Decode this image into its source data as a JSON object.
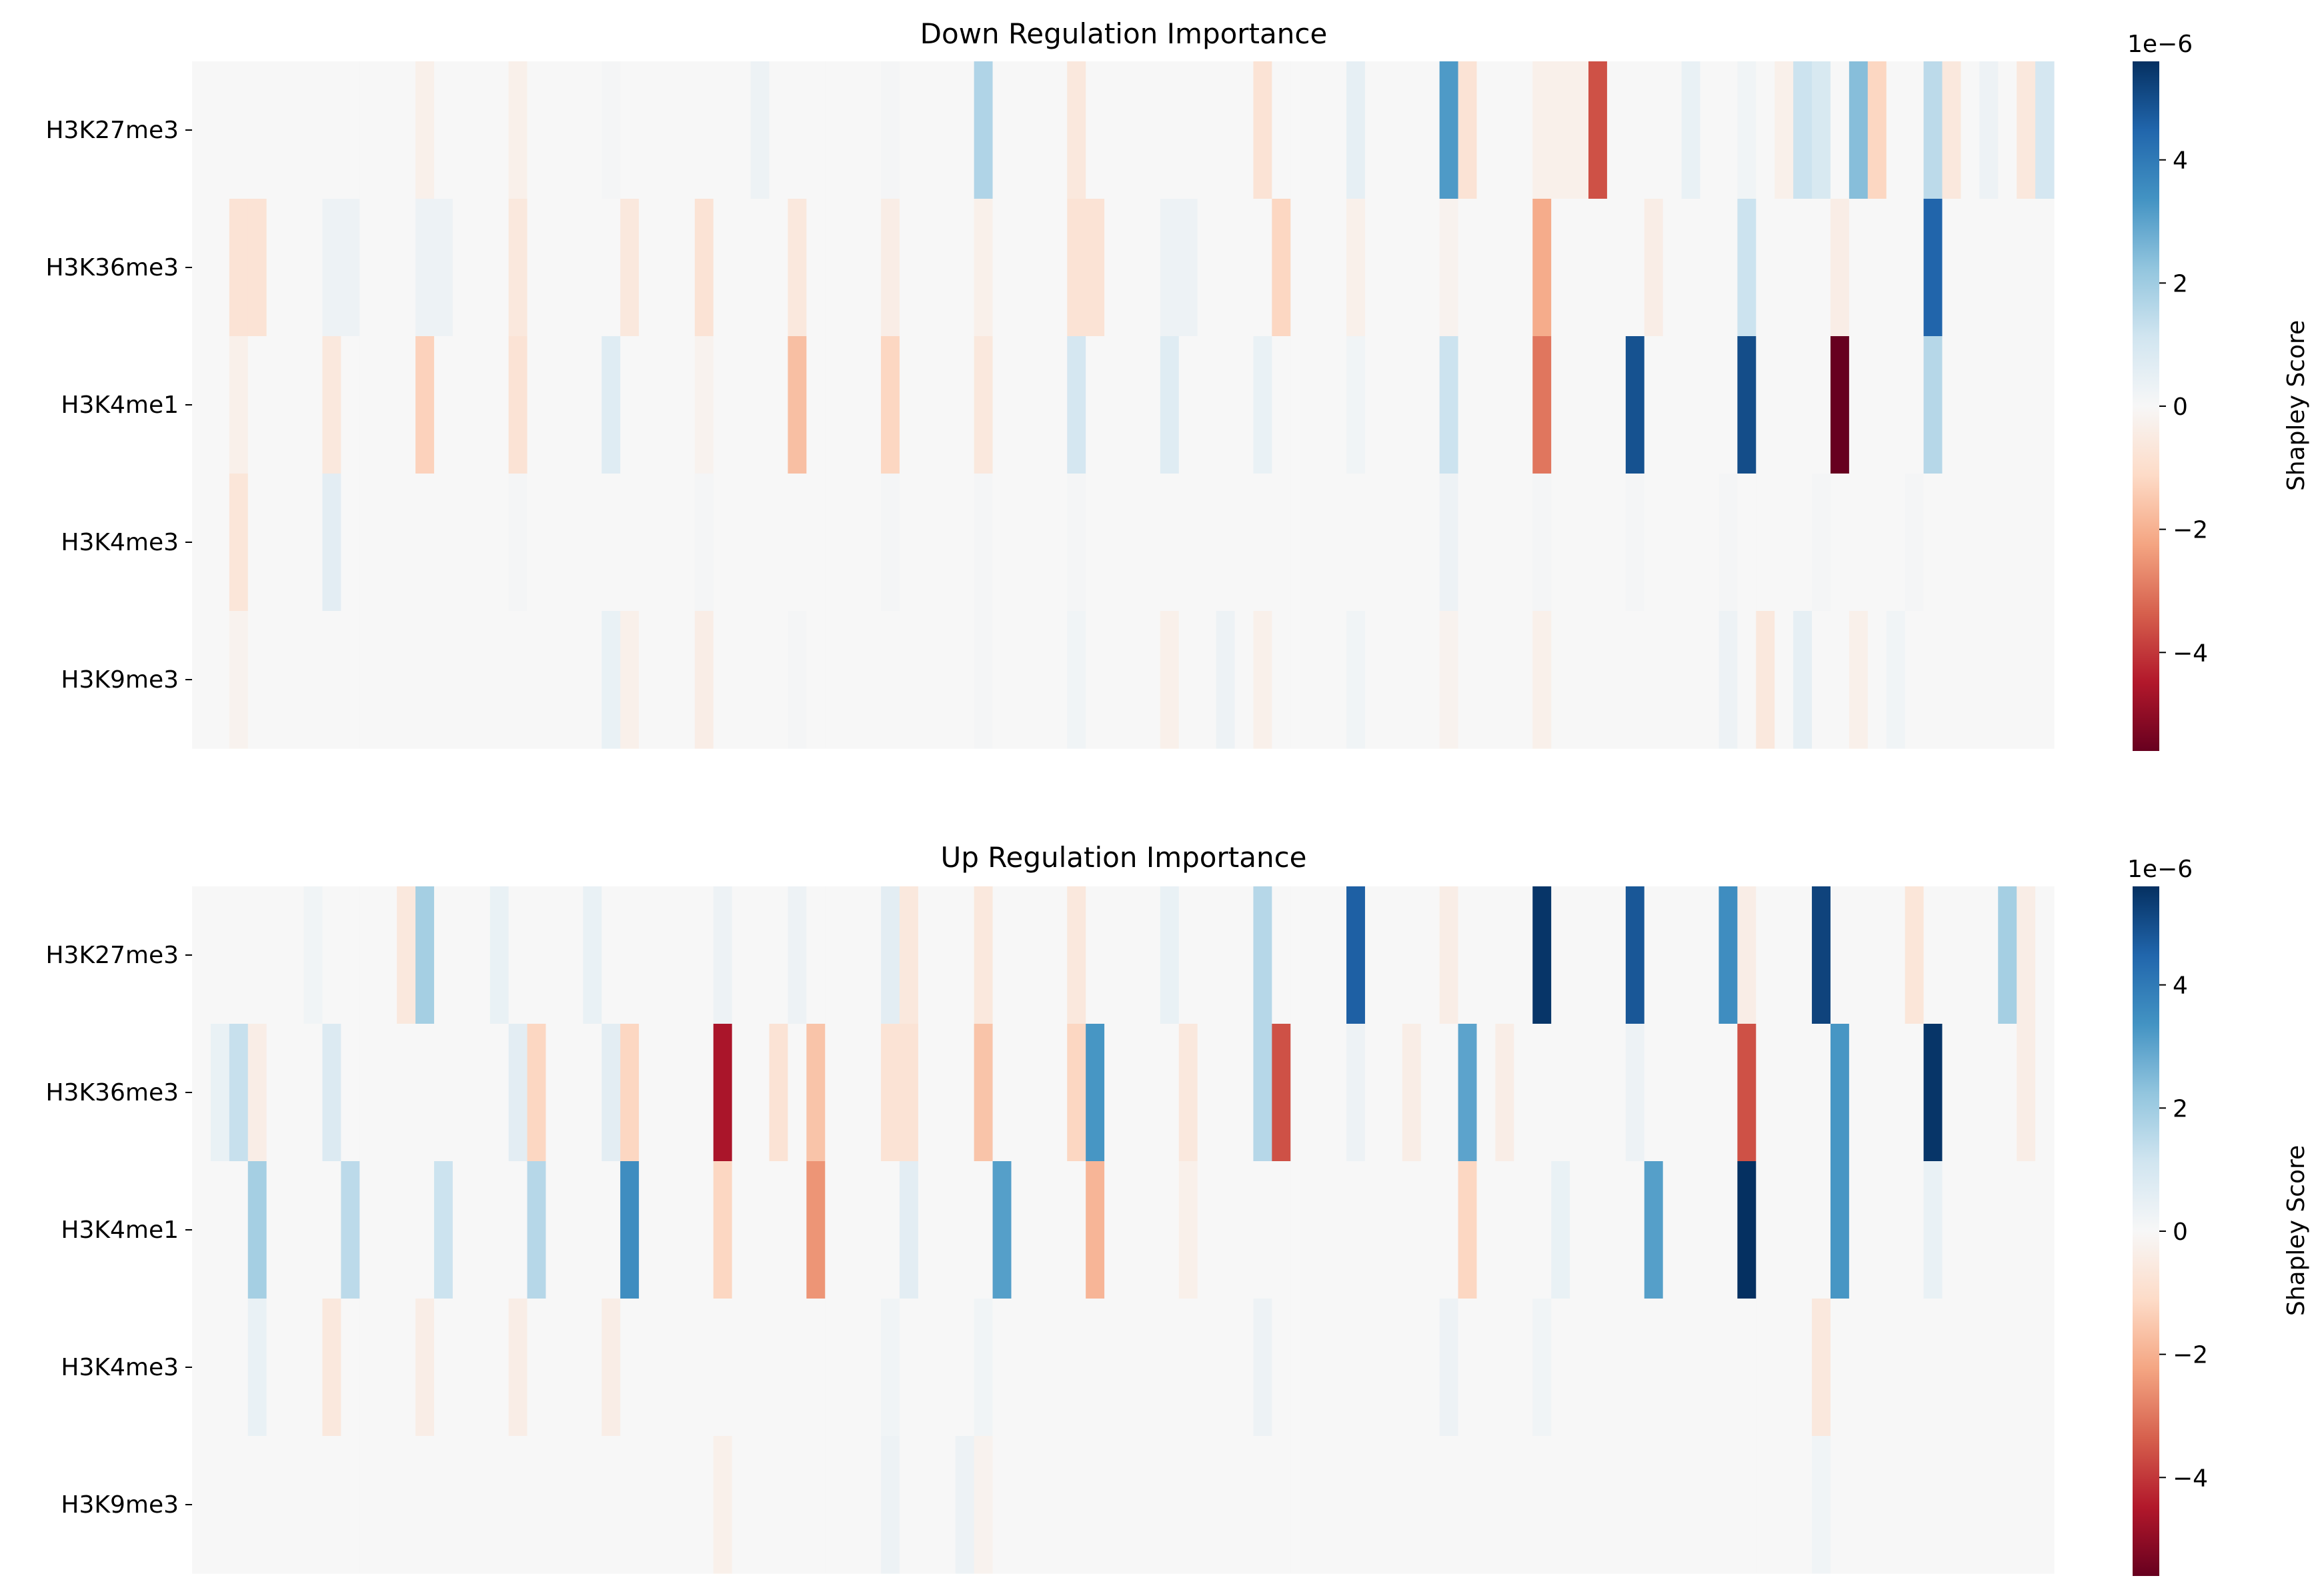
{
  "chart_data": [
    {
      "type": "heatmap",
      "title": "Down Regulation Importance",
      "rows": [
        "H3K27me3",
        "H3K36me3",
        "H3K4me1",
        "H3K4me3",
        "H3K9me3"
      ],
      "columns_count": 100,
      "colormap": "RdBu",
      "vmin": -5.6,
      "vmax": 5.6,
      "colorbar": {
        "label": "Shapley Score",
        "multiplier": "1e−6",
        "ticks": [
          "4",
          "2",
          "0",
          "−2",
          "−4"
        ],
        "tick_values": [
          4,
          2,
          0,
          -2,
          -4
        ]
      },
      "sparse_values": {
        "H3K27me3": [
          [
            12,
            -0.3
          ],
          [
            17,
            -0.3
          ],
          [
            22,
            0.1
          ],
          [
            30,
            0.3
          ],
          [
            37,
            0.1
          ],
          [
            42,
            1.7
          ],
          [
            47,
            -0.6
          ],
          [
            57,
            -0.8
          ],
          [
            62,
            0.5
          ],
          [
            67,
            3.2
          ],
          [
            68,
            -0.8
          ],
          [
            72,
            -0.3
          ],
          [
            73,
            -0.3
          ],
          [
            74,
            -0.3
          ],
          [
            75,
            -3.6
          ],
          [
            80,
            0.4
          ],
          [
            83,
            0.2
          ],
          [
            85,
            -0.3
          ],
          [
            86,
            1.2
          ],
          [
            87,
            0.9
          ],
          [
            89,
            2.4
          ],
          [
            90,
            -1.2
          ],
          [
            93,
            1.5
          ],
          [
            94,
            -0.6
          ],
          [
            96,
            0.3
          ],
          [
            98,
            -0.6
          ],
          [
            99,
            1.0
          ]
        ],
        "H3K36me3": [
          [
            2,
            -0.8
          ],
          [
            3,
            -0.8
          ],
          [
            7,
            0.3
          ],
          [
            8,
            0.3
          ],
          [
            12,
            0.3
          ],
          [
            13,
            0.3
          ],
          [
            17,
            -0.6
          ],
          [
            23,
            -0.6
          ],
          [
            27,
            -0.8
          ],
          [
            32,
            -0.6
          ],
          [
            37,
            -0.4
          ],
          [
            42,
            -0.3
          ],
          [
            47,
            -0.8
          ],
          [
            48,
            -0.8
          ],
          [
            52,
            0.3
          ],
          [
            53,
            0.3
          ],
          [
            58,
            -1.2
          ],
          [
            62,
            -0.3
          ],
          [
            67,
            -0.2
          ],
          [
            72,
            -2.1
          ],
          [
            78,
            -0.4
          ],
          [
            83,
            1.2
          ],
          [
            88,
            -0.4
          ],
          [
            93,
            4.5
          ]
        ],
        "H3K4me1": [
          [
            2,
            -0.3
          ],
          [
            7,
            -0.6
          ],
          [
            12,
            -1.3
          ],
          [
            17,
            -0.8
          ],
          [
            22,
            0.7
          ],
          [
            27,
            -0.2
          ],
          [
            32,
            -1.7
          ],
          [
            37,
            -1.2
          ],
          [
            42,
            -0.6
          ],
          [
            47,
            1.0
          ],
          [
            52,
            0.7
          ],
          [
            57,
            0.4
          ],
          [
            62,
            0.2
          ],
          [
            67,
            1.2
          ],
          [
            72,
            -3.0
          ],
          [
            77,
            4.9
          ],
          [
            83,
            5.0
          ],
          [
            88,
            -5.6
          ],
          [
            93,
            1.6
          ]
        ],
        "H3K4me3": [
          [
            2,
            -0.7
          ],
          [
            7,
            0.6
          ],
          [
            17,
            0.1
          ],
          [
            27,
            0.1
          ],
          [
            37,
            0.1
          ],
          [
            42,
            0.1
          ],
          [
            47,
            0.1
          ],
          [
            67,
            0.3
          ],
          [
            72,
            0.1
          ],
          [
            77,
            0.1
          ],
          [
            82,
            0.1
          ],
          [
            87,
            0.1
          ],
          [
            92,
            0.1
          ]
        ],
        "H3K9me3": [
          [
            2,
            -0.2
          ],
          [
            22,
            0.4
          ],
          [
            23,
            -0.3
          ],
          [
            27,
            -0.4
          ],
          [
            32,
            0.1
          ],
          [
            42,
            0.1
          ],
          [
            47,
            0.2
          ],
          [
            52,
            -0.3
          ],
          [
            55,
            0.3
          ],
          [
            57,
            -0.3
          ],
          [
            62,
            0.2
          ],
          [
            67,
            -0.2
          ],
          [
            72,
            -0.3
          ],
          [
            82,
            0.3
          ],
          [
            84,
            -0.6
          ],
          [
            86,
            0.5
          ],
          [
            89,
            -0.3
          ],
          [
            91,
            0.2
          ]
        ]
      }
    },
    {
      "type": "heatmap",
      "title": "Up Regulation Importance",
      "rows": [
        "H3K27me3",
        "H3K36me3",
        "H3K4me1",
        "H3K4me3",
        "H3K9me3"
      ],
      "columns_count": 100,
      "colormap": "RdBu",
      "vmin": -5.6,
      "vmax": 5.6,
      "colorbar": {
        "label": "Shapley Score",
        "multiplier": "1e−6",
        "ticks": [
          "4",
          "2",
          "0",
          "−2",
          "−4"
        ],
        "tick_values": [
          4,
          2,
          0,
          -2,
          -4
        ]
      },
      "sparse_values": {
        "H3K27me3": [
          [
            6,
            0.2
          ],
          [
            11,
            -0.6
          ],
          [
            12,
            1.9
          ],
          [
            16,
            0.4
          ],
          [
            21,
            0.4
          ],
          [
            28,
            0.3
          ],
          [
            32,
            0.3
          ],
          [
            37,
            0.6
          ],
          [
            38,
            -0.6
          ],
          [
            42,
            -0.6
          ],
          [
            47,
            -0.6
          ],
          [
            52,
            0.4
          ],
          [
            57,
            1.6
          ],
          [
            62,
            4.6
          ],
          [
            67,
            -0.4
          ],
          [
            72,
            5.5
          ],
          [
            77,
            4.8
          ],
          [
            82,
            3.5
          ],
          [
            83,
            -0.4
          ],
          [
            87,
            5.2
          ],
          [
            92,
            -0.7
          ],
          [
            97,
            1.9
          ],
          [
            98,
            -0.4
          ]
        ],
        "H3K36me3": [
          [
            1,
            0.4
          ],
          [
            2,
            1.3
          ],
          [
            3,
            -0.4
          ],
          [
            7,
            0.8
          ],
          [
            17,
            0.6
          ],
          [
            18,
            -1.2
          ],
          [
            22,
            0.6
          ],
          [
            23,
            -1.2
          ],
          [
            28,
            -4.6
          ],
          [
            31,
            -0.8
          ],
          [
            33,
            -1.6
          ],
          [
            37,
            -0.8
          ],
          [
            38,
            -0.8
          ],
          [
            42,
            -1.6
          ],
          [
            47,
            -1.2
          ],
          [
            48,
            3.3
          ],
          [
            53,
            -0.6
          ],
          [
            57,
            1.6
          ],
          [
            58,
            -3.6
          ],
          [
            62,
            0.3
          ],
          [
            65,
            -0.4
          ],
          [
            68,
            3.0
          ],
          [
            70,
            -0.4
          ],
          [
            77,
            0.3
          ],
          [
            83,
            -3.6
          ],
          [
            88,
            3.3
          ],
          [
            93,
            5.5
          ],
          [
            98,
            -0.4
          ]
        ],
        "H3K4me1": [
          [
            3,
            1.9
          ],
          [
            8,
            1.5
          ],
          [
            13,
            1.2
          ],
          [
            18,
            1.6
          ],
          [
            23,
            3.5
          ],
          [
            28,
            -1.2
          ],
          [
            33,
            -2.5
          ],
          [
            38,
            0.6
          ],
          [
            43,
            3.1
          ],
          [
            48,
            -1.9
          ],
          [
            53,
            -0.3
          ],
          [
            68,
            -1.2
          ],
          [
            73,
            0.4
          ],
          [
            78,
            3.1
          ],
          [
            83,
            5.6
          ],
          [
            88,
            3.3
          ],
          [
            93,
            0.4
          ]
        ],
        "H3K4me3": [
          [
            3,
            0.4
          ],
          [
            7,
            -0.6
          ],
          [
            12,
            -0.4
          ],
          [
            17,
            -0.4
          ],
          [
            22,
            -0.4
          ],
          [
            37,
            0.2
          ],
          [
            42,
            0.2
          ],
          [
            57,
            0.3
          ],
          [
            67,
            0.3
          ],
          [
            72,
            0.2
          ],
          [
            87,
            -0.6
          ]
        ],
        "H3K9me3": [
          [
            28,
            -0.3
          ],
          [
            37,
            0.3
          ],
          [
            41,
            0.3
          ],
          [
            42,
            -0.2
          ],
          [
            87,
            0.2
          ]
        ]
      }
    }
  ]
}
